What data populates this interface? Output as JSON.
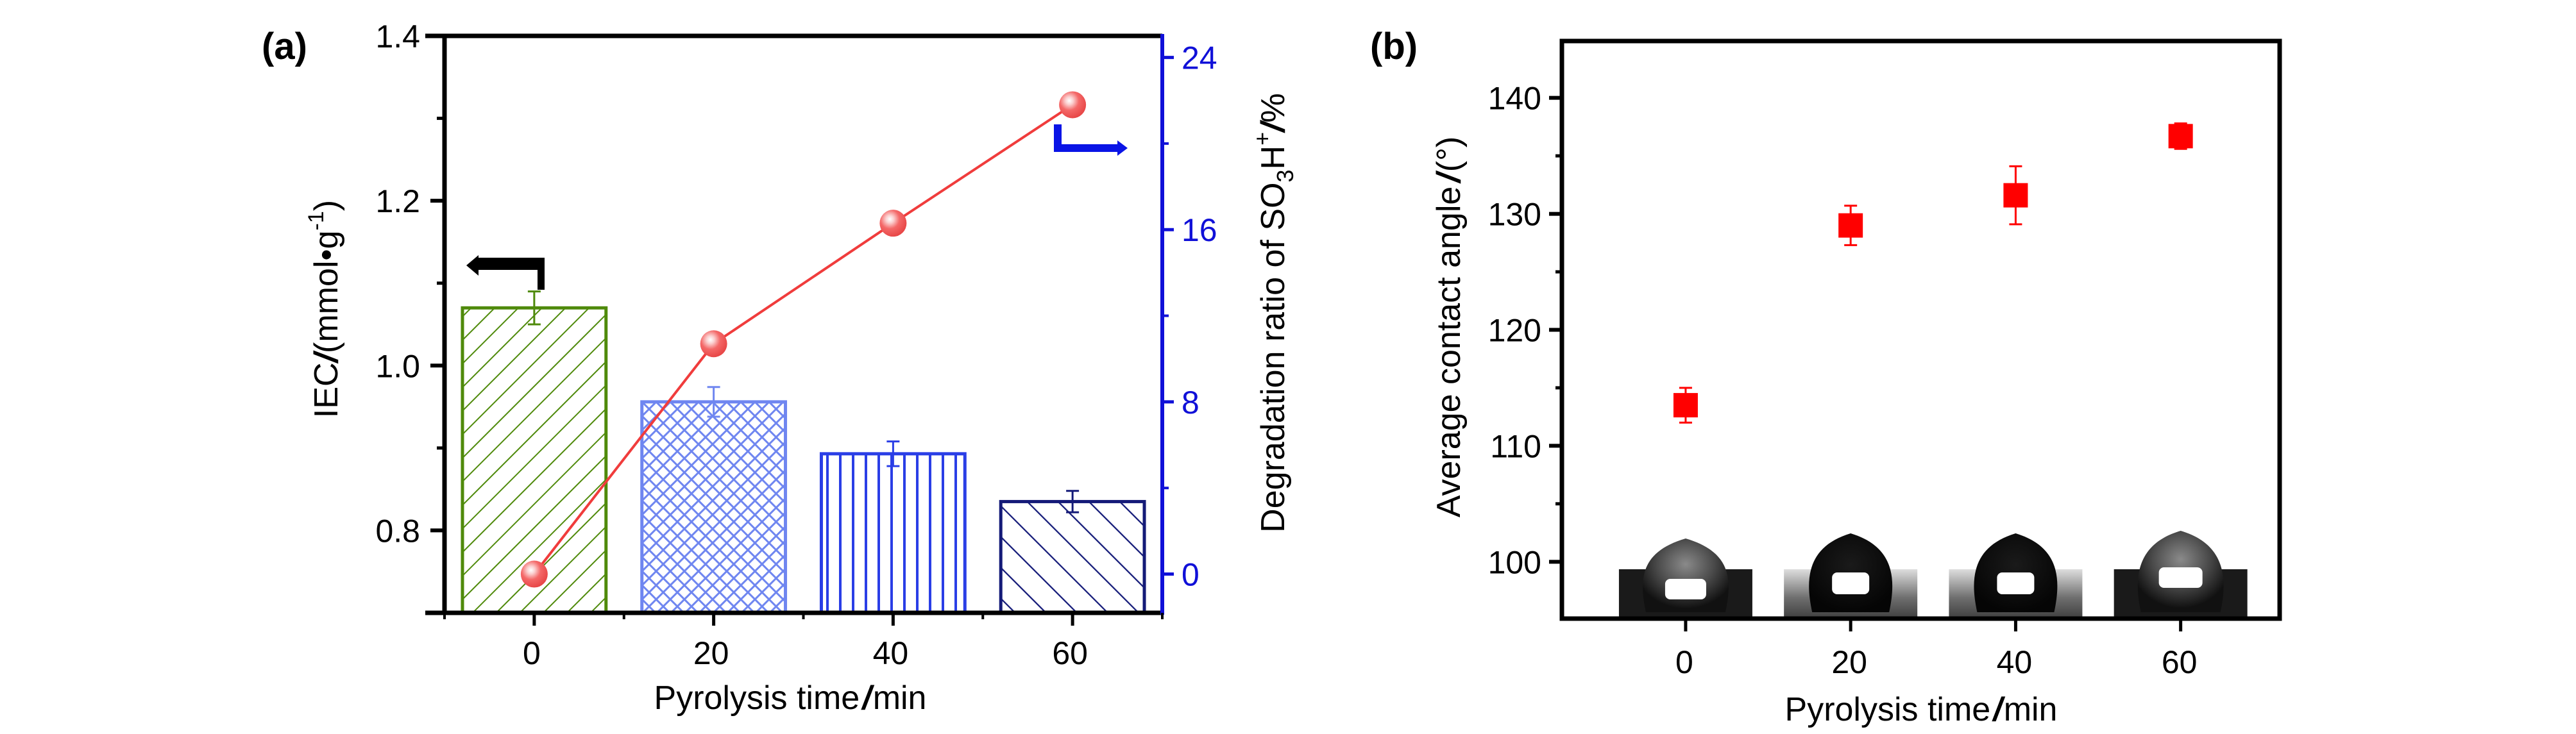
{
  "figure": {
    "panels": [
      {
        "id": "a",
        "label": "(a)"
      },
      {
        "id": "b",
        "label": "(b)"
      }
    ]
  },
  "chart_data": [
    {
      "panel": "(a)",
      "type": "bar",
      "title": "",
      "xlabel": "Pyrolysis time/min",
      "xlabel_parts": {
        "main": "Pyrolysis time",
        "slash": "/",
        "unit": "min"
      },
      "categories": [
        "0",
        "20",
        "40",
        "60"
      ],
      "x": [
        0,
        20,
        40,
        60
      ],
      "xlim": [
        -10,
        70
      ],
      "ylabel": "IEC/(mmol•g-1)",
      "ylabel_parts": {
        "main": "IEC",
        "slash": "/",
        "unit_pre": "(mmol•g",
        "sup": "-1",
        "unit_post": ")"
      },
      "ylim": [
        0.7,
        1.4
      ],
      "yticks": [
        "0.8",
        "1.0",
        "1.2",
        "1.4"
      ],
      "y2label": "Degradation ratio of SO3H+/%",
      "y2label_parts": {
        "main": "Degradation ratio of SO",
        "sub": "3",
        "h": "H",
        "sup": "+",
        "slash": "/",
        "unit": "%"
      },
      "y2lim": [
        -1.8,
        25
      ],
      "y2ticks": [
        "0",
        "8",
        "16",
        "24"
      ],
      "grid": false,
      "series": [
        {
          "name": "IEC",
          "type": "bar",
          "axis": "left",
          "values": [
            1.07,
            0.956,
            0.893,
            0.835
          ],
          "errors": [
            0.02,
            0.018,
            0.015,
            0.013
          ],
          "colors": [
            "#4f8a0b",
            "#6f86f0",
            "#2a3ee6",
            "#141a78"
          ],
          "patterns": [
            "diagonal-up",
            "crosshatch",
            "vertical",
            "diagonal-down"
          ]
        },
        {
          "name": "Degradation ratio of SO3H+",
          "type": "line",
          "axis": "right",
          "values": [
            0,
            10.7,
            16.3,
            21.8
          ],
          "color": "#f03c3c",
          "marker": "sphere"
        }
      ],
      "annotations": [
        {
          "type": "arrow",
          "direction": "left",
          "color": "#000000",
          "meaning": "bars refer to left axis"
        },
        {
          "type": "arrow",
          "direction": "right",
          "color": "#0a14e6",
          "meaning": "line refers to right axis"
        }
      ]
    },
    {
      "panel": "(b)",
      "type": "scatter",
      "title": "",
      "xlabel": "Pyrolysis time/min",
      "xlabel_parts": {
        "main": "Pyrolysis time",
        "slash": "/",
        "unit": "min"
      },
      "categories": [
        "0",
        "20",
        "40",
        "60"
      ],
      "x": [
        0,
        20,
        40,
        60
      ],
      "xlim": [
        -15,
        72
      ],
      "ylabel": "Average contact angle/(°)",
      "ylabel_parts": {
        "main": "Average contact angle",
        "slash": "/",
        "unit": "(°)"
      },
      "ylim": [
        95.1,
        144.9
      ],
      "yticks": [
        "100",
        "110",
        "120",
        "130",
        "140"
      ],
      "grid": false,
      "series": [
        {
          "name": "Average contact angle",
          "values": [
            113.5,
            129.0,
            131.6,
            136.7
          ],
          "errors": [
            1.5,
            1.7,
            2.5,
            1.1
          ],
          "color": "#ff0000",
          "marker": "square"
        }
      ],
      "insets": [
        {
          "type": "water-droplet-photo",
          "x": 0,
          "style": "translucent"
        },
        {
          "type": "water-droplet-photo",
          "x": 20,
          "style": "dark"
        },
        {
          "type": "water-droplet-photo",
          "x": 40,
          "style": "dark"
        },
        {
          "type": "water-droplet-photo",
          "x": 60,
          "style": "translucent"
        }
      ]
    }
  ]
}
